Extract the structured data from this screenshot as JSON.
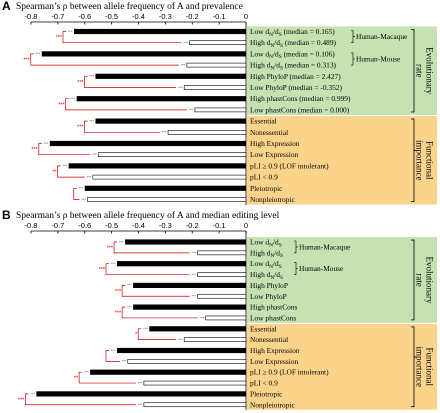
{
  "colors": {
    "green_bg": "#c6e2b3",
    "orange_bg": "#fbd48b",
    "bar_filled": "#000000",
    "bar_open": "#ffffff",
    "bracket_red": "#cc0000",
    "star_grey": "#555555"
  },
  "chart_data": [
    {
      "type": "bar",
      "orientation": "horizontal",
      "panel": "A",
      "title": "Spearman’s ρ between allele frequency of A and prevalence",
      "xlim": [
        -0.8,
        0
      ],
      "xticks": [
        "-0.8",
        "-0.7",
        "-0.6",
        "-0.5",
        "-0.4",
        "-0.3",
        "-0.2",
        "-0.1",
        "0"
      ],
      "categories": [
        "Low dN/dS (median = 0.165)",
        "High dN/dS (median = 0.489)",
        "Low dN/dS (median = 0.106)",
        "High dN/dS (median = 0.313)",
        "High PhyloP (median = 2.427)",
        "Low PhyloP (median = -0.352)",
        "High phastCons (median = 0.999)",
        "Low phastCons (median = 0.000)",
        "Essential",
        "Nonessential",
        "High Expression",
        "Low Expression",
        "pLI ≥ 0.9 (LOF intolerant)",
        "pLI < 0.9",
        "Pleiotropic",
        "Nonpleiotropic"
      ],
      "values": [
        -0.64,
        -0.21,
        -0.76,
        -0.22,
        -0.56,
        -0.23,
        -0.63,
        -0.19,
        -0.56,
        -0.29,
        -0.73,
        -0.55,
        -0.66,
        -0.57,
        -0.6,
        -0.59
      ],
      "filled": [
        true,
        false,
        true,
        false,
        true,
        false,
        true,
        false,
        true,
        false,
        true,
        false,
        true,
        false,
        true,
        false
      ],
      "bar_stars": [
        "***",
        "***",
        "***",
        "***",
        "***",
        "***",
        "***",
        "***",
        "***",
        "***",
        "***",
        "***",
        "***",
        "***",
        "***",
        "***"
      ],
      "pair_stars": [
        "***",
        "***",
        "***",
        "***",
        "***",
        "***",
        "**",
        ""
      ],
      "groups": [
        {
          "label": "Human-Macaque",
          "rows": [
            0,
            1
          ]
        },
        {
          "label": "Human-Mouse",
          "rows": [
            2,
            3
          ]
        }
      ],
      "sections": [
        {
          "label_line1": "Evolutionary",
          "label_line2": "rate",
          "rows": [
            0,
            7
          ],
          "color": "green"
        },
        {
          "label_line1": "Functional",
          "label_line2": "importance",
          "rows": [
            8,
            15
          ],
          "color": "orange"
        }
      ]
    },
    {
      "type": "bar",
      "orientation": "horizontal",
      "panel": "B",
      "title": "Spearman’s ρ between allele frequency of A and median editing level",
      "xlim": [
        -0.8,
        0
      ],
      "xticks": [
        "-0.8",
        "-0.7",
        "-0.6",
        "-0.5",
        "-0.4",
        "-0.3",
        "-0.2",
        "-0.1",
        "0"
      ],
      "categories": [
        "Low dN/dS",
        "High dN/dS",
        "Low dN/dS",
        "High dN/dS",
        "High PhyloP",
        "Low PhyloP",
        "High phastCons",
        "Low phastCons",
        "Essential",
        "Nonessential",
        "High Expression",
        "Low Expression",
        "pLI ≥ 0.9 (LOF intolerant)",
        "pLI < 0.9",
        "Pleiotropic",
        "Nonpleiotropic"
      ],
      "values": [
        -0.45,
        -0.18,
        -0.48,
        -0.18,
        -0.42,
        -0.18,
        -0.42,
        -0.15,
        -0.36,
        -0.23,
        -0.48,
        -0.44,
        -0.58,
        -0.38,
        -0.78,
        -0.38
      ],
      "filled": [
        true,
        false,
        true,
        false,
        true,
        false,
        true,
        false,
        true,
        false,
        true,
        false,
        true,
        false,
        true,
        false
      ],
      "bar_stars": [
        "***",
        "***",
        "***",
        "***",
        "***",
        "***",
        "***",
        "***",
        "***",
        "***",
        "***",
        "***",
        "***",
        "***",
        "***",
        "***"
      ],
      "pair_stars": [
        "***",
        "***",
        "***",
        "***",
        "*",
        "",
        "**",
        "***"
      ],
      "groups": [
        {
          "label": "Human-Macaque",
          "rows": [
            0,
            1
          ]
        },
        {
          "label": "Human-Mouse",
          "rows": [
            2,
            3
          ]
        }
      ],
      "sections": [
        {
          "label_line1": "Evolutionary",
          "label_line2": "rate",
          "rows": [
            0,
            7
          ],
          "color": "green"
        },
        {
          "label_line1": "Functional",
          "label_line2": "importance",
          "rows": [
            8,
            15
          ],
          "color": "orange"
        }
      ]
    }
  ]
}
